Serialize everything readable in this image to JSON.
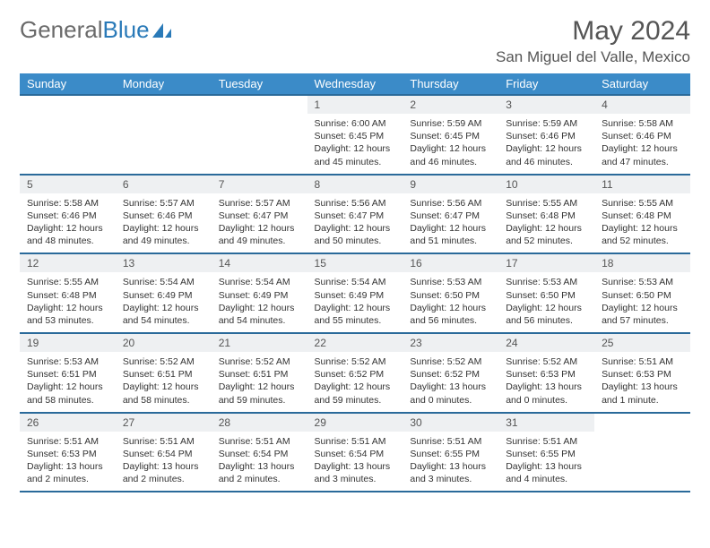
{
  "logo": {
    "text1": "General",
    "text2": "Blue"
  },
  "title": "May 2024",
  "location": "San Miguel del Valle, Mexico",
  "weekdays": [
    "Sunday",
    "Monday",
    "Tuesday",
    "Wednesday",
    "Thursday",
    "Friday",
    "Saturday"
  ],
  "colors": {
    "header_bg": "#3b8bc8",
    "header_border": "#2a6a9a",
    "daynum_bg": "#eef0f2",
    "logo_gray": "#6a6a6a",
    "logo_blue": "#2a7ab8"
  },
  "weeks": [
    [
      null,
      null,
      null,
      {
        "n": "1",
        "sunrise": "6:00 AM",
        "sunset": "6:45 PM",
        "daylight": "12 hours and 45 minutes."
      },
      {
        "n": "2",
        "sunrise": "5:59 AM",
        "sunset": "6:45 PM",
        "daylight": "12 hours and 46 minutes."
      },
      {
        "n": "3",
        "sunrise": "5:59 AM",
        "sunset": "6:46 PM",
        "daylight": "12 hours and 46 minutes."
      },
      {
        "n": "4",
        "sunrise": "5:58 AM",
        "sunset": "6:46 PM",
        "daylight": "12 hours and 47 minutes."
      }
    ],
    [
      {
        "n": "5",
        "sunrise": "5:58 AM",
        "sunset": "6:46 PM",
        "daylight": "12 hours and 48 minutes."
      },
      {
        "n": "6",
        "sunrise": "5:57 AM",
        "sunset": "6:46 PM",
        "daylight": "12 hours and 49 minutes."
      },
      {
        "n": "7",
        "sunrise": "5:57 AM",
        "sunset": "6:47 PM",
        "daylight": "12 hours and 49 minutes."
      },
      {
        "n": "8",
        "sunrise": "5:56 AM",
        "sunset": "6:47 PM",
        "daylight": "12 hours and 50 minutes."
      },
      {
        "n": "9",
        "sunrise": "5:56 AM",
        "sunset": "6:47 PM",
        "daylight": "12 hours and 51 minutes."
      },
      {
        "n": "10",
        "sunrise": "5:55 AM",
        "sunset": "6:48 PM",
        "daylight": "12 hours and 52 minutes."
      },
      {
        "n": "11",
        "sunrise": "5:55 AM",
        "sunset": "6:48 PM",
        "daylight": "12 hours and 52 minutes."
      }
    ],
    [
      {
        "n": "12",
        "sunrise": "5:55 AM",
        "sunset": "6:48 PM",
        "daylight": "12 hours and 53 minutes."
      },
      {
        "n": "13",
        "sunrise": "5:54 AM",
        "sunset": "6:49 PM",
        "daylight": "12 hours and 54 minutes."
      },
      {
        "n": "14",
        "sunrise": "5:54 AM",
        "sunset": "6:49 PM",
        "daylight": "12 hours and 54 minutes."
      },
      {
        "n": "15",
        "sunrise": "5:54 AM",
        "sunset": "6:49 PM",
        "daylight": "12 hours and 55 minutes."
      },
      {
        "n": "16",
        "sunrise": "5:53 AM",
        "sunset": "6:50 PM",
        "daylight": "12 hours and 56 minutes."
      },
      {
        "n": "17",
        "sunrise": "5:53 AM",
        "sunset": "6:50 PM",
        "daylight": "12 hours and 56 minutes."
      },
      {
        "n": "18",
        "sunrise": "5:53 AM",
        "sunset": "6:50 PM",
        "daylight": "12 hours and 57 minutes."
      }
    ],
    [
      {
        "n": "19",
        "sunrise": "5:53 AM",
        "sunset": "6:51 PM",
        "daylight": "12 hours and 58 minutes."
      },
      {
        "n": "20",
        "sunrise": "5:52 AM",
        "sunset": "6:51 PM",
        "daylight": "12 hours and 58 minutes."
      },
      {
        "n": "21",
        "sunrise": "5:52 AM",
        "sunset": "6:51 PM",
        "daylight": "12 hours and 59 minutes."
      },
      {
        "n": "22",
        "sunrise": "5:52 AM",
        "sunset": "6:52 PM",
        "daylight": "12 hours and 59 minutes."
      },
      {
        "n": "23",
        "sunrise": "5:52 AM",
        "sunset": "6:52 PM",
        "daylight": "13 hours and 0 minutes."
      },
      {
        "n": "24",
        "sunrise": "5:52 AM",
        "sunset": "6:53 PM",
        "daylight": "13 hours and 0 minutes."
      },
      {
        "n": "25",
        "sunrise": "5:51 AM",
        "sunset": "6:53 PM",
        "daylight": "13 hours and 1 minute."
      }
    ],
    [
      {
        "n": "26",
        "sunrise": "5:51 AM",
        "sunset": "6:53 PM",
        "daylight": "13 hours and 2 minutes."
      },
      {
        "n": "27",
        "sunrise": "5:51 AM",
        "sunset": "6:54 PM",
        "daylight": "13 hours and 2 minutes."
      },
      {
        "n": "28",
        "sunrise": "5:51 AM",
        "sunset": "6:54 PM",
        "daylight": "13 hours and 2 minutes."
      },
      {
        "n": "29",
        "sunrise": "5:51 AM",
        "sunset": "6:54 PM",
        "daylight": "13 hours and 3 minutes."
      },
      {
        "n": "30",
        "sunrise": "5:51 AM",
        "sunset": "6:55 PM",
        "daylight": "13 hours and 3 minutes."
      },
      {
        "n": "31",
        "sunrise": "5:51 AM",
        "sunset": "6:55 PM",
        "daylight": "13 hours and 4 minutes."
      },
      null
    ]
  ]
}
